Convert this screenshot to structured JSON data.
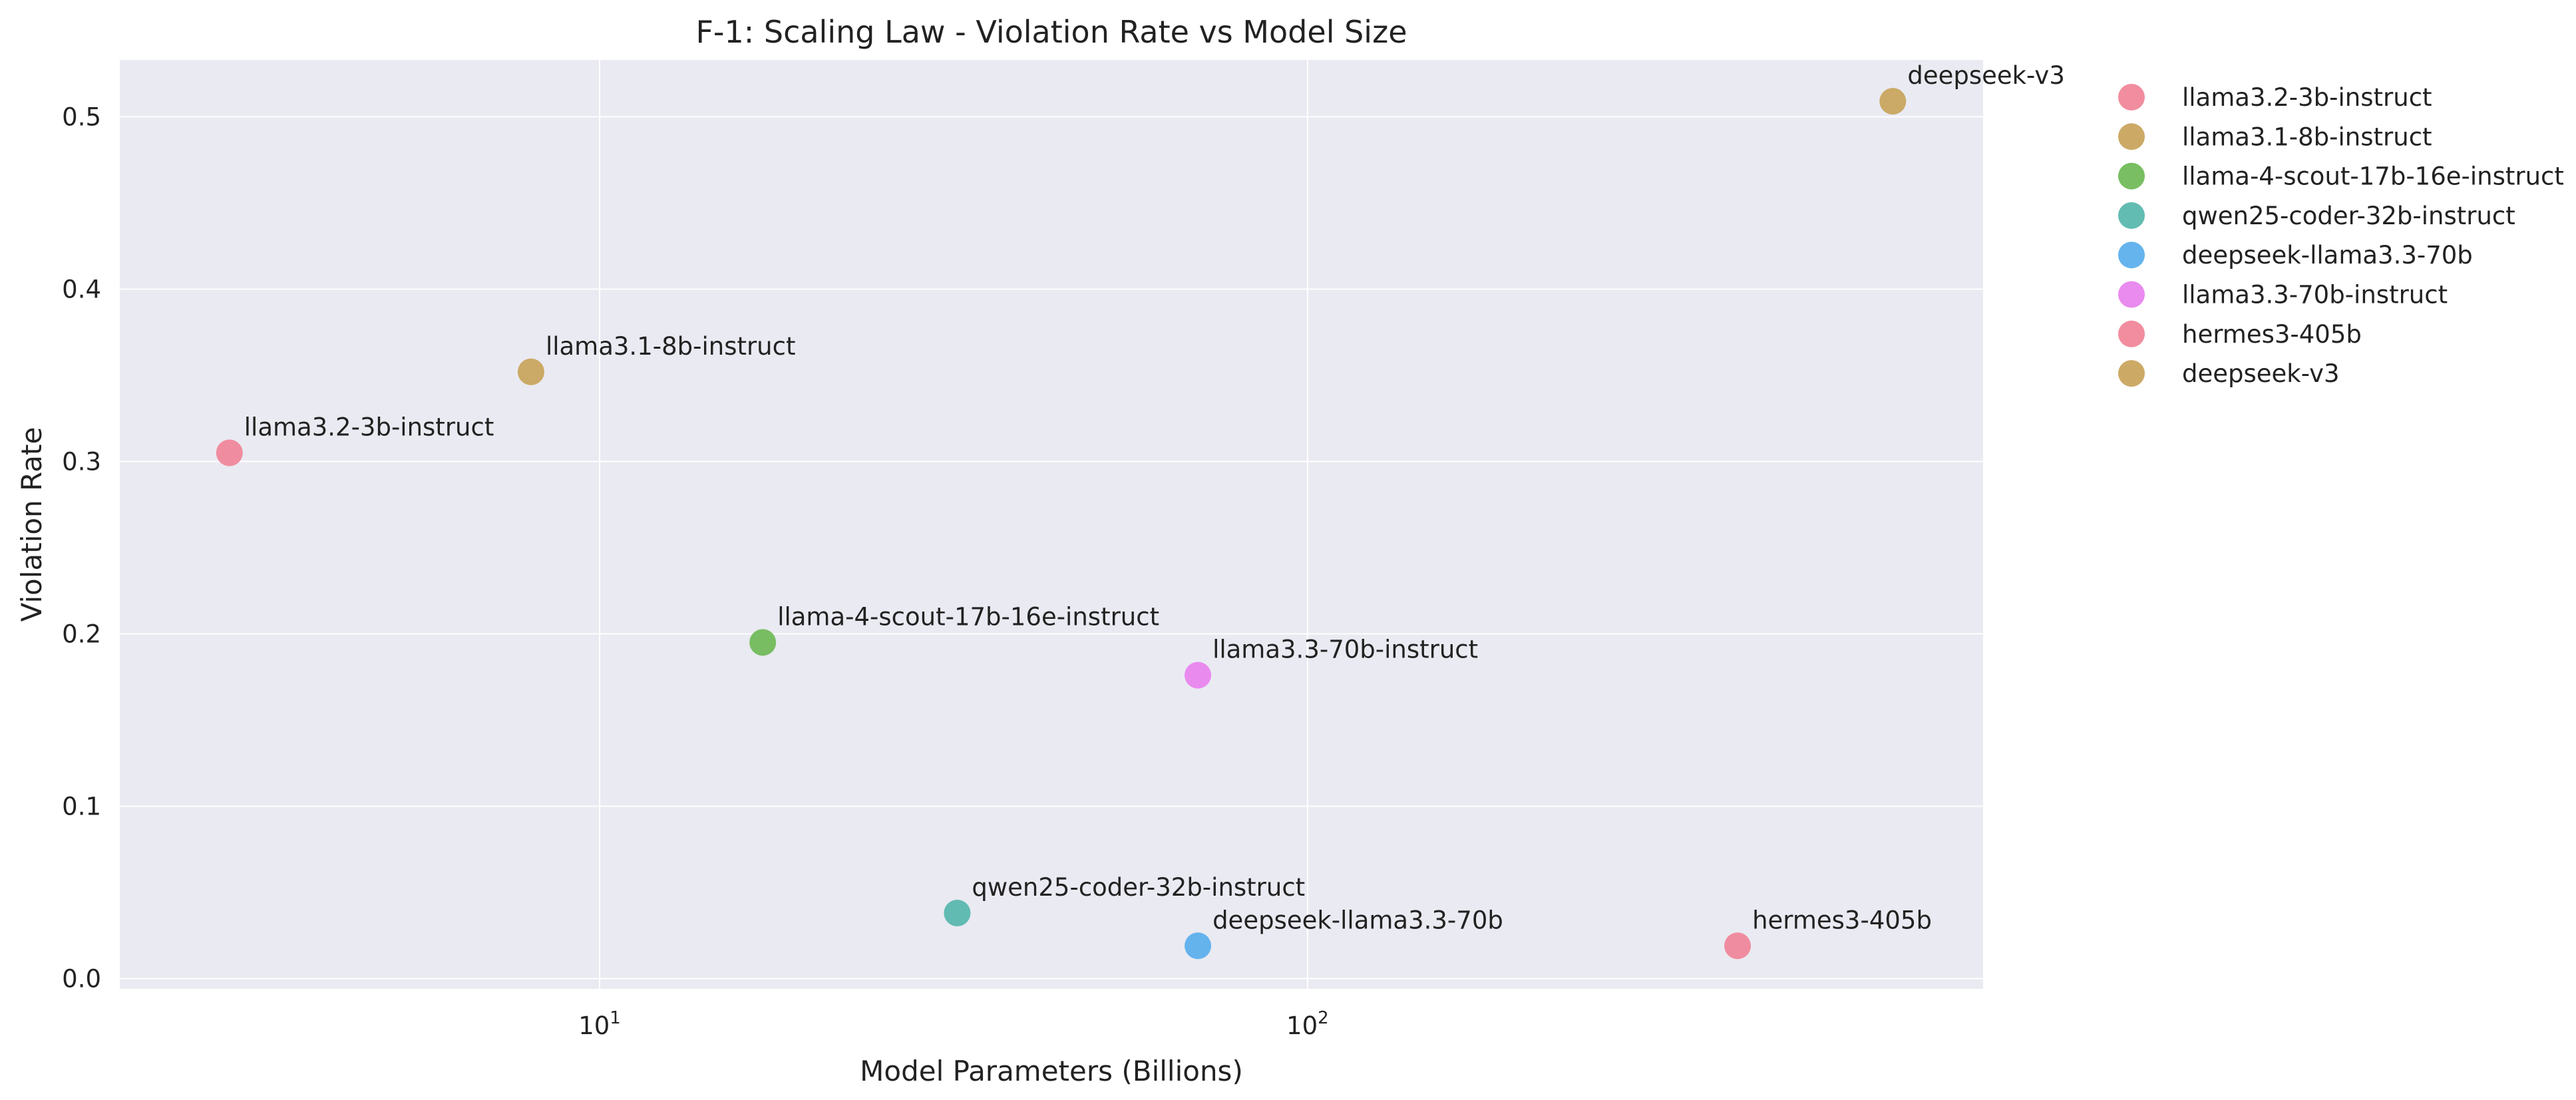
{
  "chart_data": {
    "type": "scatter",
    "title": "F-1: Scaling Law - Violation Rate vs Model Size",
    "xlabel": "Model Parameters (Billions)",
    "ylabel": "Violation Rate",
    "x_scale": "log",
    "xlim": [
      2.1,
      900
    ],
    "ylim": [
      -0.006,
      0.533
    ],
    "x_ticks": [
      {
        "value": 10,
        "base": "10",
        "exp": "1"
      },
      {
        "value": 100,
        "base": "10",
        "exp": "2"
      }
    ],
    "y_ticks": [
      {
        "value": 0.0,
        "label": "0.0"
      },
      {
        "value": 0.1,
        "label": "0.1"
      },
      {
        "value": 0.2,
        "label": "0.2"
      },
      {
        "value": 0.3,
        "label": "0.3"
      },
      {
        "value": 0.4,
        "label": "0.4"
      },
      {
        "value": 0.5,
        "label": "0.5"
      }
    ],
    "grid": true,
    "legend_position": "outside right, top",
    "points": [
      {
        "label": "llama3.2-3b-instruct",
        "x": 3,
        "y": 0.305,
        "color": "#f0879a"
      },
      {
        "label": "llama3.1-8b-instruct",
        "x": 8,
        "y": 0.352,
        "color": "#c9a55e"
      },
      {
        "label": "llama-4-scout-17b-16e-instruct",
        "x": 17,
        "y": 0.195,
        "color": "#72bb5a"
      },
      {
        "label": "qwen25-coder-32b-instruct",
        "x": 32,
        "y": 0.038,
        "color": "#5ab8ae"
      },
      {
        "label": "deepseek-llama3.3-70b",
        "x": 70,
        "y": 0.019,
        "color": "#5db0ec"
      },
      {
        "label": "llama3.3-70b-instruct",
        "x": 70,
        "y": 0.176,
        "color": "#e985ee"
      },
      {
        "label": "hermes3-405b",
        "x": 405,
        "y": 0.019,
        "color": "#f0879a"
      },
      {
        "label": "deepseek-v3",
        "x": 671,
        "y": 0.509,
        "color": "#c9a55e"
      }
    ]
  }
}
